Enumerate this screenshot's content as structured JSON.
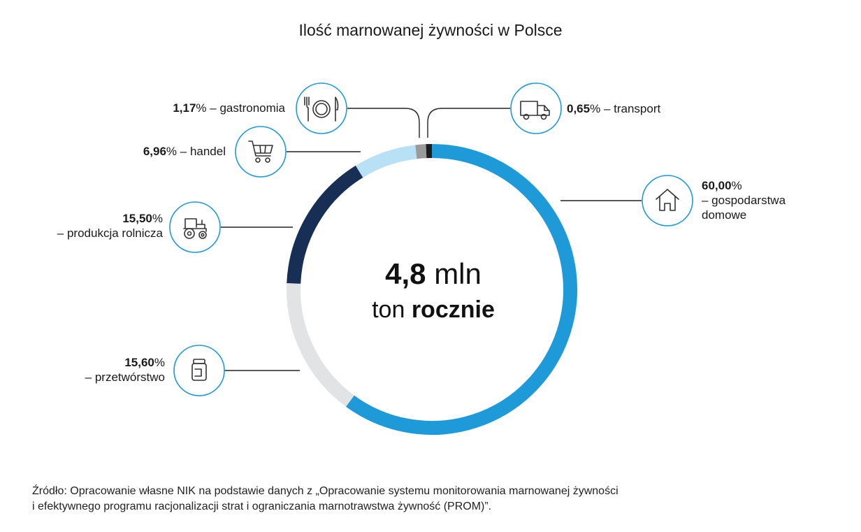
{
  "colors": {
    "households": "#1f9ad9",
    "processing": "#e2e3e4",
    "agriculture": "#172f54",
    "trade": "#b9e1f6",
    "gastronomy": "#9a9a9a",
    "transport": "#1d1d1d",
    "icon_stroke": "#1f9ad9",
    "leader": "#222222"
  },
  "icons": [
    "house-icon",
    "jar-icon",
    "tractor-icon",
    "cart-icon",
    "plate-cutlery-icon",
    "truck-icon"
  ],
  "chart_data": {
    "type": "pie",
    "title": "Ilość marnowanej żywności w Polsce",
    "center_value": "4,8",
    "center_unit": "mln",
    "center_sub_a": "ton",
    "center_sub_b": "rocznie",
    "slices": [
      {
        "pct_text": "60,00",
        "value": 60.0,
        "label_a": "– gospodarstwa",
        "label_b": "domowe",
        "color": "#1f9ad9"
      },
      {
        "pct_text": "15,60",
        "value": 15.6,
        "label_a": "– przetwórstwo",
        "color": "#e2e3e4"
      },
      {
        "pct_text": "15,50",
        "value": 15.5,
        "label_a": "– produkcja rolnicza",
        "color": "#172f54"
      },
      {
        "pct_text": "6,96",
        "value": 6.96,
        "label_a": " – handel",
        "color": "#b9e1f6"
      },
      {
        "pct_text": "1,17",
        "value": 1.17,
        "label_a": " – gastronomia",
        "color": "#9a9a9a"
      },
      {
        "pct_text": "0,65",
        "value": 0.65,
        "label_a": " – transport",
        "color": "#1d1d1d"
      }
    ],
    "pct_sign": "%"
  },
  "source": {
    "line1": "Źródło: Opracowanie własne NIK na  podstawie danych z  „Opracowanie systemu monitorowania marnowanej żywności",
    "line2": "i efektywnego programu racjonalizacji strat i ograniczania marnotrawstwa żywność (PROM)”."
  }
}
